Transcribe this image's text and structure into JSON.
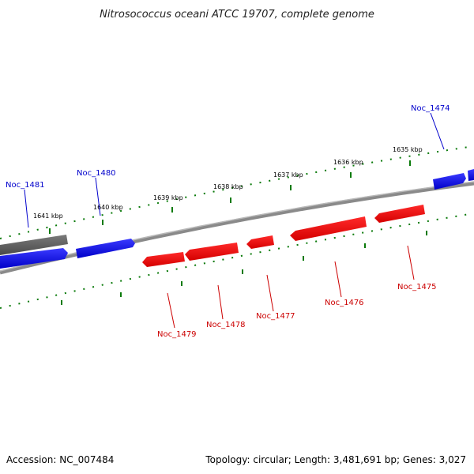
{
  "title": "Nitrosococcus oceani ATCC 19707, complete genome",
  "footer": {
    "accession": "Accession: NC_007484",
    "summary": "Topology: circular; Length: 3,481,691 bp; Genes: 3,027"
  },
  "colors": {
    "forward": "#0000ee",
    "reverse": "#ee0000",
    "other": "#666666",
    "backbone": "#888888",
    "ticks": "#006600"
  },
  "kbp_labels": [
    "1641 kbp",
    "1640 kbp",
    "1639 kbp",
    "1638 kbp",
    "1637 kbp",
    "1636 kbp",
    "1635 kbp"
  ],
  "genes_forward": [
    "Noc_1481",
    "Noc_1480",
    "Noc_1474"
  ],
  "genes_reverse": [
    "Noc_1479",
    "Noc_1478",
    "Noc_1477",
    "Noc_1476",
    "Noc_1475"
  ]
}
